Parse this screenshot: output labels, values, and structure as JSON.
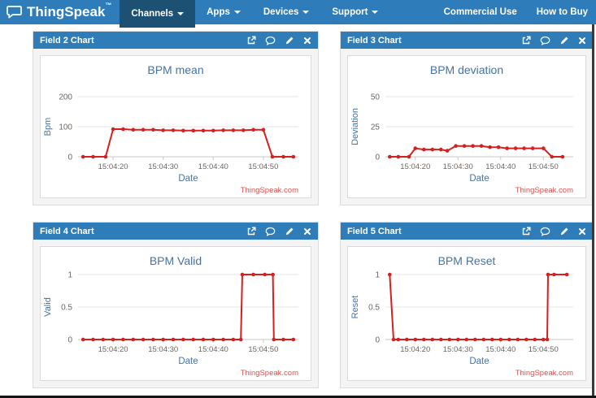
{
  "navbar": {
    "logo_text": "ThingSpeak",
    "logo_tm": "™",
    "items": [
      {
        "label": "Channels",
        "active": true
      },
      {
        "label": "Apps",
        "active": false
      },
      {
        "label": "Devices",
        "active": false
      },
      {
        "label": "Support",
        "active": false
      }
    ],
    "right_items": [
      {
        "label": "Commercial Use"
      },
      {
        "label": "How to Buy"
      }
    ]
  },
  "panels": [
    {
      "header": "Field 2 Chart"
    },
    {
      "header": "Field 3 Chart"
    },
    {
      "header": "Field 4 Chart"
    },
    {
      "header": "Field 5 Chart"
    }
  ],
  "panel_icon_names": [
    "popout-icon",
    "comment-icon",
    "edit-pencil-icon",
    "close-icon"
  ],
  "colors": {
    "navbar_bg": "#2e7dba",
    "navbar_active_bg": "#1d5174",
    "panel_header_bg": "#2f7db8",
    "line_red": "#d62020",
    "chart_text_blue": "#4673a4",
    "tick_text": "#6d655f",
    "credit_red": "#d9534f",
    "gridline": "#e4e4e4",
    "axis_line": "#c9c9c9"
  },
  "chart_data": [
    {
      "type": "line",
      "title": "BPM mean",
      "xlabel": "Date",
      "ylabel": "Bpm",
      "credit": "ThingSpeak.com",
      "x_note": "seconds after 15:04:00",
      "xlim": [
        13,
        57
      ],
      "ylim": [
        0,
        200
      ],
      "grid": true,
      "top_margin": 50,
      "yticks": [
        {
          "v": 0,
          "label": "0"
        },
        {
          "v": 100,
          "label": "100"
        },
        {
          "v": 200,
          "label": "200"
        }
      ],
      "xticks": [
        {
          "v": 20,
          "label": "15:04:20"
        },
        {
          "v": 30,
          "label": "15:04:30"
        },
        {
          "v": 40,
          "label": "15:04:40"
        },
        {
          "v": 50,
          "label": "15:04:50"
        }
      ],
      "x": [
        14,
        16,
        18.5,
        20,
        22,
        24,
        26,
        28,
        30,
        32,
        34,
        36,
        38,
        40,
        42,
        44,
        46,
        48,
        50,
        51.8,
        54,
        56
      ],
      "values": [
        0,
        0,
        0,
        92,
        92,
        90,
        90,
        90,
        88,
        88,
        87,
        87,
        87,
        87,
        88,
        88,
        88,
        90,
        90,
        0,
        0,
        0
      ]
    },
    {
      "type": "line",
      "title": "BPM deviation",
      "xlabel": "Date",
      "ylabel": "Deviation",
      "credit": "ThingSpeak.com",
      "x_note": "seconds after 15:04:00",
      "xlim": [
        13,
        57
      ],
      "ylim": [
        0,
        50
      ],
      "grid": true,
      "top_margin": 50,
      "yticks": [
        {
          "v": 0,
          "label": "0"
        },
        {
          "v": 25,
          "label": "25"
        },
        {
          "v": 50,
          "label": "50"
        }
      ],
      "xticks": [
        {
          "v": 20,
          "label": "15:04:20"
        },
        {
          "v": 30,
          "label": "15:04:30"
        },
        {
          "v": 40,
          "label": "15:04:40"
        },
        {
          "v": 50,
          "label": "15:04:50"
        }
      ],
      "x": [
        14,
        16,
        18.5,
        20,
        22,
        24,
        26,
        27.5,
        29.5,
        31.5,
        33.5,
        35.5,
        37.5,
        39.5,
        41.5,
        43.5,
        45.5,
        47.5,
        50,
        52,
        54.5
      ],
      "values": [
        0,
        0,
        0,
        7,
        6,
        6,
        6,
        5,
        9,
        9,
        9,
        9,
        8,
        8,
        7,
        7,
        7,
        7,
        7,
        0,
        0
      ]
    },
    {
      "type": "line",
      "title": "BPM Valid",
      "xlabel": "Date",
      "ylabel": "Valid",
      "credit": "ThingSpeak.com",
      "x_note": "seconds after 15:04:00",
      "xlim": [
        13,
        57
      ],
      "ylim": [
        0,
        1
      ],
      "grid": true,
      "top_margin": 34,
      "yticks": [
        {
          "v": 0,
          "label": "0"
        },
        {
          "v": 0.5,
          "label": "0.5"
        },
        {
          "v": 1,
          "label": "1"
        }
      ],
      "xticks": [
        {
          "v": 20,
          "label": "15:04:20"
        },
        {
          "v": 30,
          "label": "15:04:30"
        },
        {
          "v": 40,
          "label": "15:04:40"
        },
        {
          "v": 50,
          "label": "15:04:50"
        }
      ],
      "x": [
        14,
        16,
        18,
        20,
        22,
        24,
        26,
        28,
        30,
        32,
        34,
        36,
        38,
        40,
        42,
        44,
        45.5,
        45.8,
        48,
        50.3,
        51.9,
        52.1,
        54,
        56
      ],
      "values": [
        0,
        0,
        0,
        0,
        0,
        0,
        0,
        0,
        0,
        0,
        0,
        0,
        0,
        0,
        0,
        0,
        0,
        1,
        1,
        1,
        1,
        0,
        0,
        0
      ]
    },
    {
      "type": "line",
      "title": "BPM Reset",
      "xlabel": "Date",
      "ylabel": "Reset",
      "credit": "ThingSpeak.com",
      "x_note": "seconds after 15:04:00",
      "xlim": [
        13,
        57
      ],
      "ylim": [
        0,
        1
      ],
      "grid": true,
      "top_margin": 34,
      "yticks": [
        {
          "v": 0,
          "label": "0"
        },
        {
          "v": 0.5,
          "label": "0.5"
        },
        {
          "v": 1,
          "label": "1"
        }
      ],
      "xticks": [
        {
          "v": 20,
          "label": "15:04:20"
        },
        {
          "v": 30,
          "label": "15:04:30"
        },
        {
          "v": 40,
          "label": "15:04:40"
        },
        {
          "v": 50,
          "label": "15:04:50"
        }
      ],
      "x": [
        14,
        14.9,
        16,
        18,
        20,
        22,
        24,
        26,
        28,
        30,
        32,
        34,
        36,
        38,
        40,
        42,
        44,
        46,
        48,
        50,
        50.9,
        51.1,
        52.5,
        55.5
      ],
      "values": [
        1,
        0,
        0,
        0,
        0,
        0,
        0,
        0,
        0,
        0,
        0,
        0,
        0,
        0,
        0,
        0,
        0,
        0,
        0,
        0,
        0,
        1,
        1,
        1
      ]
    }
  ]
}
